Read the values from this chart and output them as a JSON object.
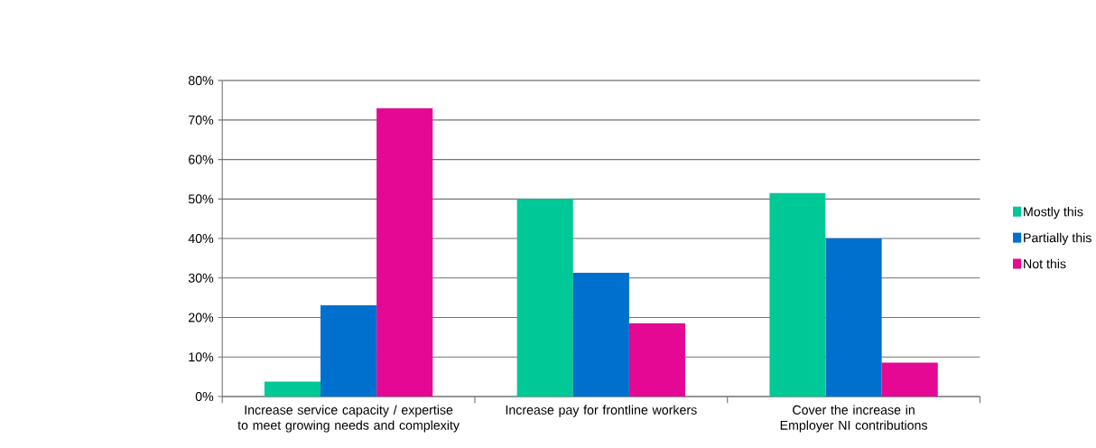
{
  "chart_data": {
    "type": "bar",
    "categories": [
      "Increase service capacity / expertise to meet growing needs and complexity",
      "Increase pay for frontline workers",
      "Cover the increase in Employer NI contributions"
    ],
    "series": [
      {
        "name": "Mostly this",
        "color": "#00c896",
        "values": [
          3.8,
          50.0,
          51.5
        ]
      },
      {
        "name": "Partially this",
        "color": "#0070cf",
        "values": [
          23.1,
          31.3,
          40.0
        ]
      },
      {
        "name": "Not this",
        "color": "#e40894",
        "values": [
          73.0,
          18.5,
          8.6
        ]
      }
    ],
    "ylim": [
      0,
      80
    ],
    "yticks": [
      {
        "value": 0,
        "label": "0%"
      },
      {
        "value": 10,
        "label": "10%"
      },
      {
        "value": 20,
        "label": "20%"
      },
      {
        "value": 30,
        "label": "30%"
      },
      {
        "value": 40,
        "label": "40%"
      },
      {
        "value": 50,
        "label": "50%"
      },
      {
        "value": 60,
        "label": "60%"
      },
      {
        "value": 70,
        "label": "70%"
      },
      {
        "value": 80,
        "label": "80%"
      }
    ],
    "grid": "y",
    "legend": "right"
  }
}
